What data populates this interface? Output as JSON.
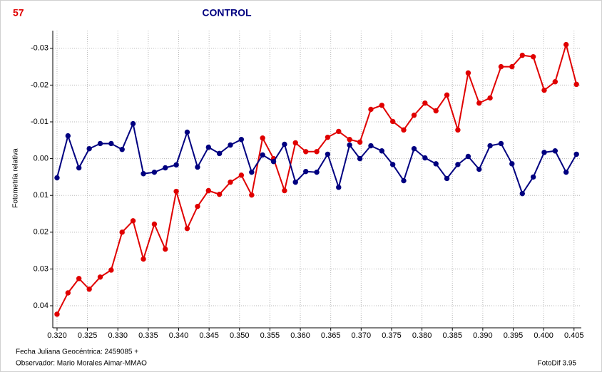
{
  "chart_data": {
    "type": "line",
    "number": "57",
    "title": "CONTROL",
    "y_label": "Fotometría relativa",
    "x_label": "Fecha Juliana Geocéntrica: 2459085 +",
    "observer": "Observador: Mario Morales Aimar-MMAO",
    "software": "FotoDif 3.95",
    "x": [
      0.32,
      0.3218,
      0.3236,
      0.3253,
      0.3271,
      0.3289,
      0.3307,
      0.3325,
      0.3342,
      0.336,
      0.3378,
      0.3396,
      0.3414,
      0.3431,
      0.3449,
      0.3467,
      0.3485,
      0.3503,
      0.352,
      0.3538,
      0.3556,
      0.3574,
      0.3592,
      0.3609,
      0.3627,
      0.3645,
      0.3663,
      0.3681,
      0.3698,
      0.3716,
      0.3734,
      0.3752,
      0.377,
      0.3787,
      0.3805,
      0.3823,
      0.3841,
      0.3859,
      0.3876,
      0.3894,
      0.3912,
      0.393,
      0.3948,
      0.3965,
      0.3983,
      0.4001,
      0.4019,
      0.4037,
      0.4054
    ],
    "series": [
      {
        "color": "#e00000",
        "values": [
          0.0423,
          0.0365,
          0.0326,
          0.0355,
          0.0322,
          0.0303,
          0.02,
          0.0169,
          0.0273,
          0.0178,
          0.0246,
          0.0089,
          0.019,
          0.013,
          0.0087,
          0.0097,
          0.0064,
          0.0045,
          0.0099,
          -0.0056,
          0,
          0.0087,
          -0.0043,
          -0.0019,
          -0.0019,
          -0.0058,
          -0.0074,
          -0.0052,
          -0.0045,
          -0.0134,
          -0.0145,
          -0.0101,
          -0.0078,
          -0.0118,
          -0.0151,
          -0.013,
          -0.0173,
          -0.0078,
          -0.0233,
          -0.0151,
          -0.0165,
          -0.025,
          -0.025,
          -0.0281,
          -0.0277,
          -0.0186,
          -0.0209,
          -0.031,
          -0.0202
        ]
      },
      {
        "color": "#000080",
        "values": [
          0.0052,
          -0.0062,
          0.0025,
          -0.0027,
          -0.0041,
          -0.0041,
          -0.0025,
          -0.0095,
          0.0041,
          0.0037,
          0.0025,
          0.0017,
          -0.0072,
          0.0023,
          -0.0031,
          -0.0014,
          -0.0037,
          -0.0052,
          0.0037,
          -0.001,
          0.0008,
          -0.0039,
          0.0064,
          0.0035,
          0.0037,
          -0.0012,
          0.0078,
          -0.0037,
          0,
          -0.0035,
          -0.0021,
          0.0016,
          0.006,
          -0.0027,
          -0.0002,
          0.0014,
          0.0054,
          0.0016,
          -0.0006,
          0.0029,
          -0.0035,
          -0.0041,
          0.0014,
          0.0095,
          0.005,
          -0.0017,
          -0.0021,
          0.0037,
          -0.0012
        ]
      }
    ],
    "xlim": [
      0.3193,
      0.4062
    ],
    "ylim": [
      -0.0348,
      0.046
    ],
    "y_inverted": true,
    "xticks": [
      {
        "value": 0.32,
        "label": "0.320"
      },
      0.325,
      {
        "value": 0.33,
        "label": "0.330"
      },
      0.335,
      {
        "value": 0.34,
        "label": "0.340"
      },
      0.345,
      {
        "value": 0.35,
        "label": "0.350"
      },
      0.355,
      {
        "value": 0.36,
        "label": "0.360"
      },
      0.365,
      {
        "value": 0.37,
        "label": "0.370"
      },
      0.375,
      {
        "value": 0.38,
        "label": "0.380"
      },
      0.385,
      {
        "value": 0.39,
        "label": "0.390"
      },
      0.395,
      {
        "value": 0.4,
        "label": "0.400"
      },
      0.405
    ],
    "yticks": [
      -0.03,
      -0.02,
      -0.01,
      {
        "value": 0,
        "label": "0.00"
      },
      0.01,
      0.02,
      0.03,
      0.04
    ],
    "grid": true
  }
}
